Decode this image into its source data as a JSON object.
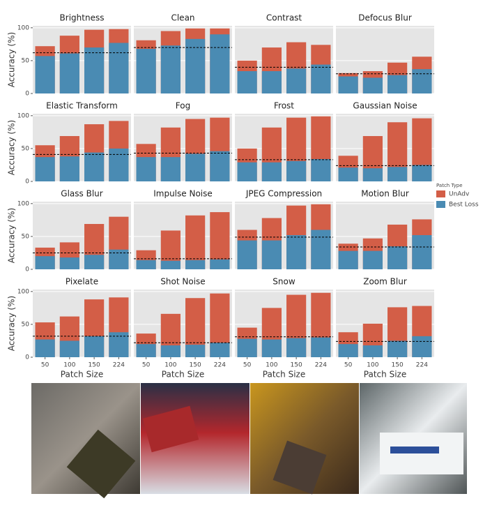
{
  "chart_data": [
    {
      "type": "bar",
      "title": "Brightness",
      "ylabel": "Accuracy (%)",
      "legend_title": "Patch Type",
      "categories": [
        50,
        100,
        150,
        224
      ],
      "ylim": [
        0,
        103
      ],
      "yticks": [
        0,
        50,
        100
      ],
      "grid": true,
      "reference_line": 62,
      "series": [
        {
          "name": "UnAdv",
          "color": "#d35e47",
          "values": [
            72,
            88,
            97,
            98
          ]
        },
        {
          "name": "Best Loss",
          "color": "#4a8bb3",
          "values": [
            57,
            61,
            70,
            77
          ]
        }
      ]
    },
    {
      "type": "bar",
      "title": "Clean",
      "categories": [
        50,
        100,
        150,
        224
      ],
      "ylim": [
        0,
        103
      ],
      "yticks": [
        0,
        50,
        100
      ],
      "grid": true,
      "reference_line": 70,
      "series": [
        {
          "color": "#d35e47",
          "values": [
            81,
            95,
            99,
            99
          ]
        },
        {
          "color": "#4a8bb3",
          "values": [
            68,
            73,
            83,
            90
          ]
        }
      ]
    },
    {
      "type": "bar",
      "title": "Contrast",
      "categories": [
        50,
        100,
        150,
        224
      ],
      "ylim": [
        0,
        103
      ],
      "yticks": [
        0,
        50,
        100
      ],
      "grid": true,
      "reference_line": 40,
      "series": [
        {
          "color": "#d35e47",
          "values": [
            50,
            70,
            78,
            74
          ]
        },
        {
          "color": "#4a8bb3",
          "values": [
            34,
            34,
            38,
            44
          ]
        }
      ]
    },
    {
      "type": "bar",
      "title": "Defocus Blur",
      "categories": [
        50,
        100,
        150,
        224
      ],
      "ylim": [
        0,
        103
      ],
      "yticks": [
        0,
        50,
        100
      ],
      "grid": true,
      "reference_line": 30,
      "series": [
        {
          "color": "#d35e47",
          "values": [
            31,
            34,
            47,
            56
          ]
        },
        {
          "color": "#4a8bb3",
          "values": [
            26,
            24,
            28,
            37
          ]
        }
      ]
    },
    {
      "type": "bar",
      "title": "Elastic Transform",
      "ylabel": "Accuracy (%)",
      "categories": [
        50,
        100,
        150,
        224
      ],
      "ylim": [
        0,
        103
      ],
      "yticks": [
        0,
        50,
        100
      ],
      "grid": true,
      "reference_line": 41,
      "series": [
        {
          "color": "#d35e47",
          "values": [
            55,
            69,
            87,
            92
          ]
        },
        {
          "color": "#4a8bb3",
          "values": [
            37,
            38,
            44,
            50
          ]
        }
      ]
    },
    {
      "type": "bar",
      "title": "Fog",
      "categories": [
        50,
        100,
        150,
        224
      ],
      "ylim": [
        0,
        103
      ],
      "yticks": [
        0,
        50,
        100
      ],
      "grid": true,
      "reference_line": 43,
      "series": [
        {
          "color": "#d35e47",
          "values": [
            57,
            82,
            95,
            97
          ]
        },
        {
          "color": "#4a8bb3",
          "values": [
            37,
            37,
            42,
            46
          ]
        }
      ]
    },
    {
      "type": "bar",
      "title": "Frost",
      "categories": [
        50,
        100,
        150,
        224
      ],
      "ylim": [
        0,
        103
      ],
      "yticks": [
        0,
        50,
        100
      ],
      "grid": true,
      "reference_line": 33,
      "series": [
        {
          "color": "#d35e47",
          "values": [
            50,
            82,
            97,
            99
          ]
        },
        {
          "color": "#4a8bb3",
          "values": [
            29,
            29,
            31,
            34
          ]
        }
      ]
    },
    {
      "type": "bar",
      "title": "Gaussian Noise",
      "categories": [
        50,
        100,
        150,
        224
      ],
      "ylim": [
        0,
        103
      ],
      "yticks": [
        0,
        50,
        100
      ],
      "grid": true,
      "reference_line": 24,
      "series": [
        {
          "color": "#d35e47",
          "values": [
            39,
            69,
            90,
            96
          ]
        },
        {
          "color": "#4a8bb3",
          "values": [
            21,
            20,
            22,
            25
          ]
        }
      ]
    },
    {
      "type": "bar",
      "title": "Glass Blur",
      "ylabel": "Accuracy (%)",
      "categories": [
        50,
        100,
        150,
        224
      ],
      "ylim": [
        0,
        103
      ],
      "yticks": [
        0,
        50,
        100
      ],
      "grid": true,
      "reference_line": 25,
      "series": [
        {
          "color": "#d35e47",
          "values": [
            33,
            41,
            69,
            80
          ]
        },
        {
          "color": "#4a8bb3",
          "values": [
            20,
            18,
            22,
            30
          ]
        }
      ]
    },
    {
      "type": "bar",
      "title": "Impulse Noise",
      "categories": [
        50,
        100,
        150,
        224
      ],
      "ylim": [
        0,
        103
      ],
      "yticks": [
        0,
        50,
        100
      ],
      "grid": true,
      "reference_line": 16,
      "series": [
        {
          "color": "#d35e47",
          "values": [
            29,
            59,
            82,
            87
          ]
        },
        {
          "color": "#4a8bb3",
          "values": [
            14,
            13,
            14,
            15
          ]
        }
      ]
    },
    {
      "type": "bar",
      "title": "JPEG Compression",
      "categories": [
        50,
        100,
        150,
        224
      ],
      "ylim": [
        0,
        103
      ],
      "yticks": [
        0,
        50,
        100
      ],
      "grid": true,
      "reference_line": 49,
      "series": [
        {
          "color": "#d35e47",
          "values": [
            60,
            78,
            97,
            99
          ]
        },
        {
          "color": "#4a8bb3",
          "values": [
            44,
            44,
            52,
            60
          ]
        }
      ]
    },
    {
      "type": "bar",
      "title": "Motion Blur",
      "categories": [
        50,
        100,
        150,
        224
      ],
      "ylim": [
        0,
        103
      ],
      "yticks": [
        0,
        50,
        100
      ],
      "grid": true,
      "reference_line": 34,
      "series": [
        {
          "color": "#d35e47",
          "values": [
            39,
            47,
            68,
            76
          ]
        },
        {
          "color": "#4a8bb3",
          "values": [
            28,
            28,
            35,
            52
          ]
        }
      ]
    },
    {
      "type": "bar",
      "title": "Pixelate",
      "ylabel": "Accuracy (%)",
      "xlabel": "Patch Size",
      "categories": [
        50,
        100,
        150,
        224
      ],
      "ylim": [
        0,
        103
      ],
      "yticks": [
        0,
        50,
        100
      ],
      "grid": true,
      "reference_line": 32,
      "series": [
        {
          "color": "#d35e47",
          "values": [
            53,
            62,
            88,
            91
          ]
        },
        {
          "color": "#4a8bb3",
          "values": [
            27,
            25,
            32,
            38
          ]
        }
      ]
    },
    {
      "type": "bar",
      "title": "Shot Noise",
      "xlabel": "Patch Size",
      "categories": [
        50,
        100,
        150,
        224
      ],
      "ylim": [
        0,
        103
      ],
      "yticks": [
        0,
        50,
        100
      ],
      "grid": true,
      "reference_line": 22,
      "series": [
        {
          "color": "#d35e47",
          "values": [
            36,
            66,
            90,
            97
          ]
        },
        {
          "color": "#4a8bb3",
          "values": [
            20,
            18,
            19,
            22
          ]
        }
      ]
    },
    {
      "type": "bar",
      "title": "Snow",
      "xlabel": "Patch Size",
      "categories": [
        50,
        100,
        150,
        224
      ],
      "ylim": [
        0,
        103
      ],
      "yticks": [
        0,
        50,
        100
      ],
      "grid": true,
      "reference_line": 31,
      "series": [
        {
          "color": "#d35e47",
          "values": [
            45,
            75,
            95,
            98
          ]
        },
        {
          "color": "#4a8bb3",
          "values": [
            28,
            27,
            29,
            30
          ]
        }
      ]
    },
    {
      "type": "bar",
      "title": "Zoom Blur",
      "xlabel": "Patch Size",
      "categories": [
        50,
        100,
        150,
        224
      ],
      "ylim": [
        0,
        103
      ],
      "yticks": [
        0,
        50,
        100
      ],
      "grid": true,
      "reference_line": 24,
      "series": [
        {
          "color": "#d35e47",
          "values": [
            38,
            51,
            76,
            78
          ]
        },
        {
          "color": "#4a8bb3",
          "values": [
            20,
            18,
            25,
            32
          ]
        }
      ]
    }
  ]
}
